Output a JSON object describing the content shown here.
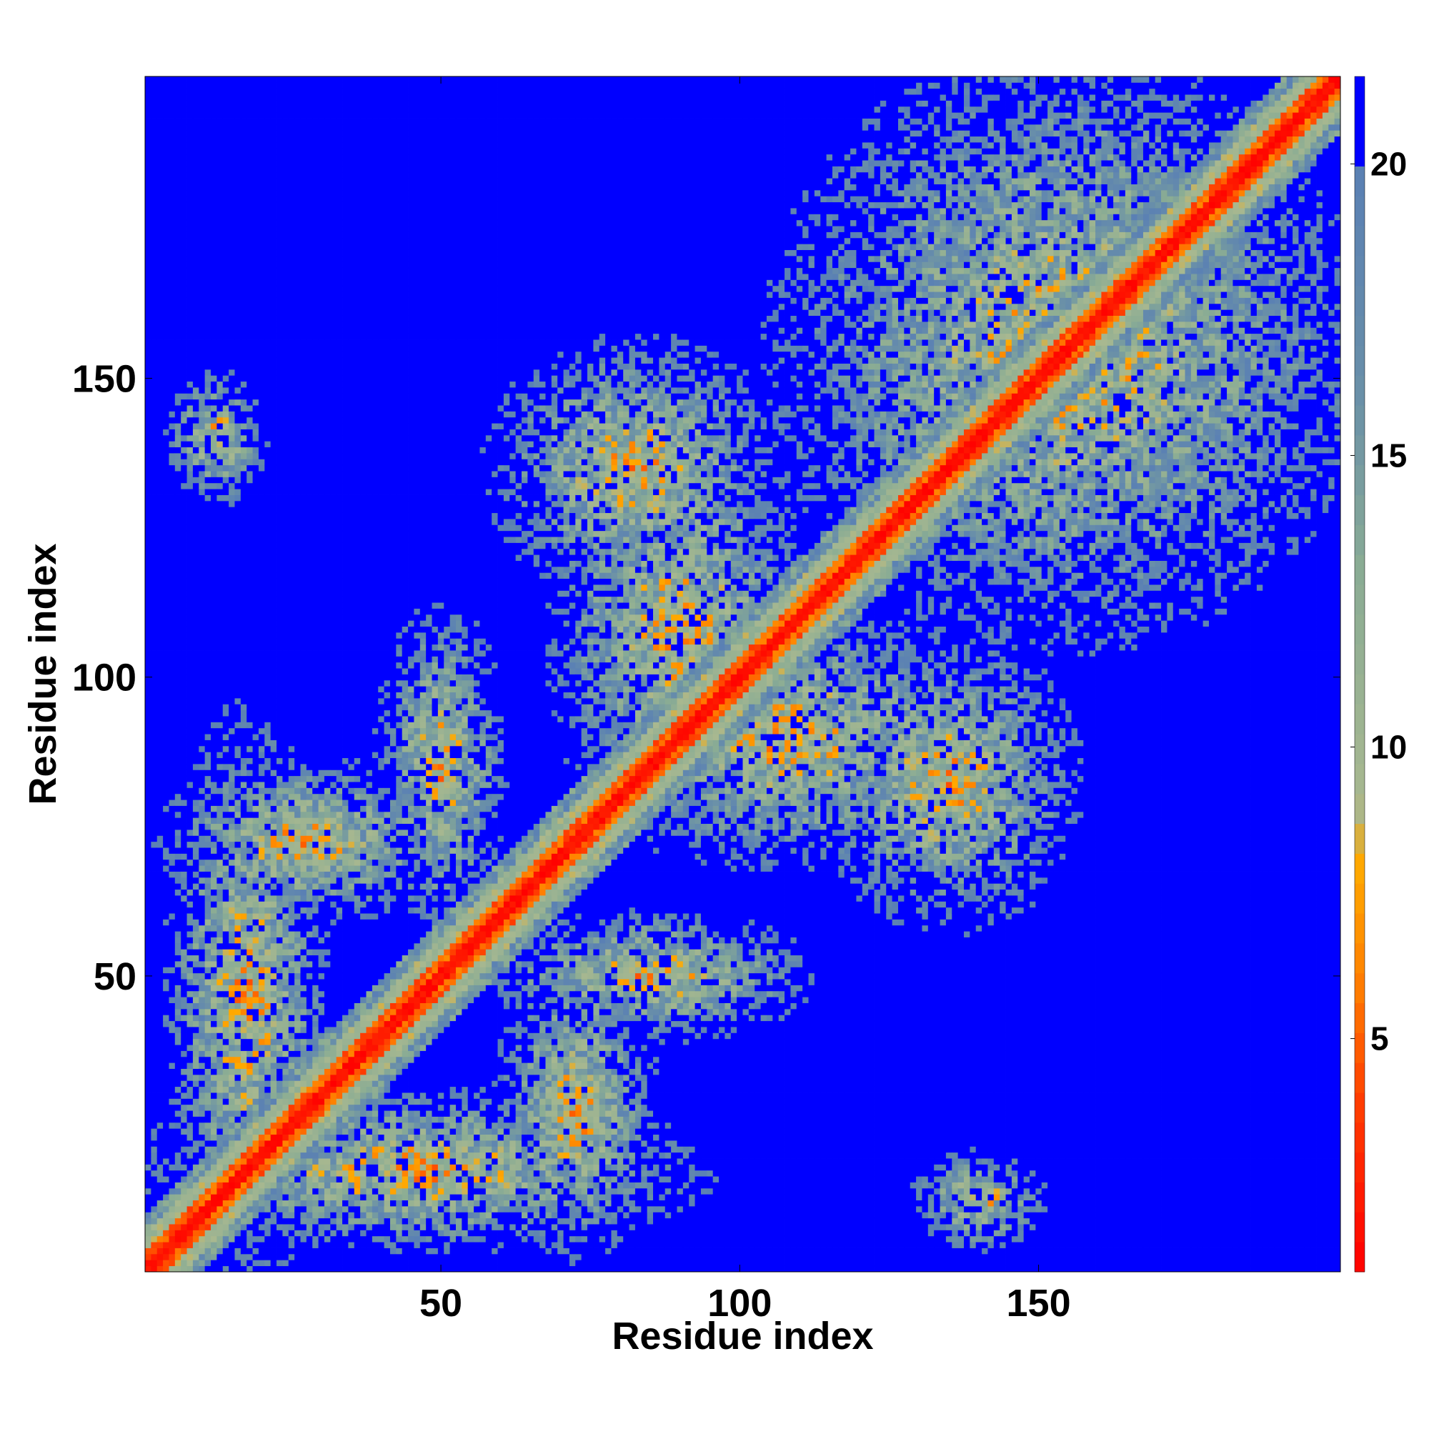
{
  "chart_data": {
    "type": "heatmap",
    "title": "",
    "xlabel": "Residue index",
    "ylabel": "Residue index",
    "n_residues": 200,
    "xlim": [
      1,
      200
    ],
    "ylim": [
      1,
      200
    ],
    "x_ticks": [
      50,
      100,
      150
    ],
    "y_ticks": [
      50,
      100,
      150
    ],
    "colorbar": {
      "range": [
        1,
        21.5
      ],
      "ticks": [
        5,
        10,
        15,
        20
      ],
      "blue_above": 20,
      "stops": [
        {
          "value": 1,
          "color": "#ff0000"
        },
        {
          "value": 4,
          "color": "#ff4000"
        },
        {
          "value": 6,
          "color": "#ff8000"
        },
        {
          "value": 8,
          "color": "#ffaa00"
        },
        {
          "value": 9,
          "color": "#a8b890"
        },
        {
          "value": 13,
          "color": "#8aac94"
        },
        {
          "value": 16,
          "color": "#6a90a8"
        },
        {
          "value": 20,
          "color": "#5a80b4"
        },
        {
          "value": 21.5,
          "color": "#0000ff"
        }
      ]
    },
    "contact_blocks": [
      {
        "x": [
          5,
          30
        ],
        "y": [
          2,
          90
        ]
      },
      {
        "x": [
          2,
          90
        ],
        "y": [
          5,
          30
        ]
      },
      {
        "x": [
          60,
          85
        ],
        "y": [
          5,
          50
        ]
      },
      {
        "x": [
          5,
          50
        ],
        "y": [
          60,
          85
        ]
      },
      {
        "x": [
          40,
          60
        ],
        "y": [
          60,
          110
        ]
      },
      {
        "x": [
          60,
          110
        ],
        "y": [
          40,
          60
        ]
      },
      {
        "x": [
          70,
          110
        ],
        "y": [
          75,
          140
        ]
      },
      {
        "x": [
          75,
          140
        ],
        "y": [
          70,
          110
        ]
      },
      {
        "x": [
          110,
          200
        ],
        "y": [
          110,
          200
        ]
      },
      {
        "x": [
          115,
          155
        ],
        "y": [
          60,
          105
        ]
      },
      {
        "x": [
          60,
          105
        ],
        "y": [
          115,
          155
        ]
      },
      {
        "x": [
          130,
          150
        ],
        "y": [
          5,
          20
        ]
      },
      {
        "x": [
          5,
          20
        ],
        "y": [
          130,
          150
        ]
      }
    ]
  }
}
